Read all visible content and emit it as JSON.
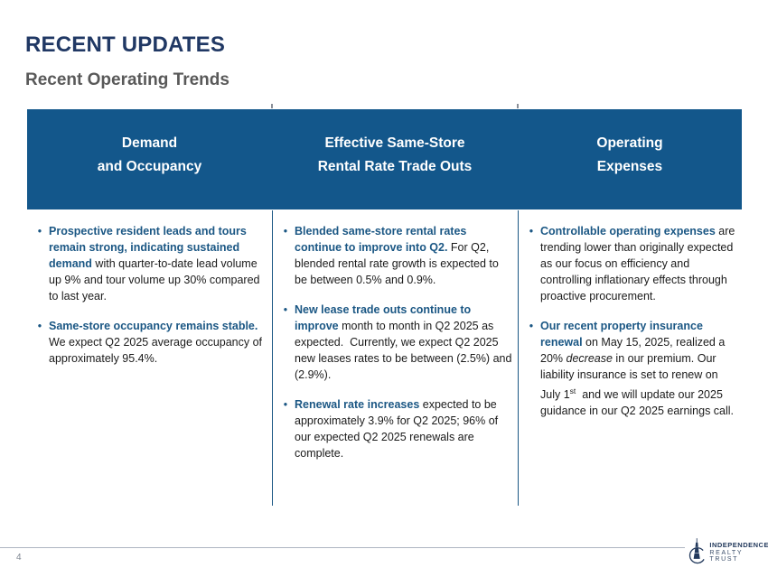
{
  "slide": {
    "title": "RECENT UPDATES",
    "subtitle": "Recent Operating Trends",
    "page_number": "4"
  },
  "colors": {
    "header_bg": "#13578B",
    "accent_blue": "#1B5784",
    "title_navy": "#203864",
    "subtitle_gray": "#595959",
    "body_text": "#1A1A1A",
    "footer_line": "#AEB6C2",
    "logo_navy": "#22395C"
  },
  "table": {
    "bullet_char": "•",
    "columns": [
      {
        "header_line1": "Demand",
        "header_line2": "and Occupancy",
        "bullets": [
          {
            "segments": [
              {
                "style": "bold-blue",
                "text": "Prospective resident leads and tours remain strong, indicating sustained demand"
              },
              {
                "style": "normal",
                "text": " with quarter-to-date lead volume up 9% and tour volume up 30% compared to last year."
              }
            ]
          },
          {
            "segments": [
              {
                "style": "bold-blue",
                "text": "Same-store occupancy remains stable."
              },
              {
                "style": "normal",
                "text": " We expect Q2 2025 average occupancy of approximately 95.4%."
              }
            ]
          }
        ]
      },
      {
        "header_line1": "Effective Same-Store",
        "header_line2": "Rental Rate Trade Outs",
        "bullets": [
          {
            "segments": [
              {
                "style": "bold-blue",
                "text": "Blended same-store rental rates continue to improve into Q2."
              },
              {
                "style": "normal",
                "text": " For Q2, blended rental rate growth is expected to be between 0.5% and 0.9%."
              }
            ]
          },
          {
            "segments": [
              {
                "style": "bold-blue",
                "text": "New lease trade outs continue to improve"
              },
              {
                "style": "normal",
                "text": " month to month in Q2 2025 as expected.  Currently, we expect Q2 2025 new leases rates to be between (2.5%) and (2.9%)."
              }
            ]
          },
          {
            "segments": [
              {
                "style": "bold-blue",
                "text": "Renewal rate increases"
              },
              {
                "style": "normal",
                "text": " expected to be approximately 3.9% for Q2 2025; 96% of our expected Q2 2025 renewals are complete."
              }
            ]
          }
        ]
      },
      {
        "header_line1": "Operating",
        "header_line2": "Expenses",
        "bullets": [
          {
            "segments": [
              {
                "style": "bold-blue",
                "text": "Controllable operating expenses"
              },
              {
                "style": "normal",
                "text": " are trending lower than originally expected as our focus on efficiency and controlling inflationary effects through proactive procurement."
              }
            ]
          },
          {
            "segments": [
              {
                "style": "bold-blue",
                "text": "Our recent property insurance renewal"
              },
              {
                "style": "normal",
                "text": " on May 15, 2025, realized a 20% "
              },
              {
                "style": "italic",
                "text": "decrease"
              },
              {
                "style": "normal",
                "text": " in our premium. Our liability insurance is set to renew on July 1"
              },
              {
                "style": "sup",
                "text": "st"
              },
              {
                "style": "normal",
                "text": "  and we will update our 2025 guidance in our Q2 2025 earnings call."
              }
            ]
          }
        ]
      }
    ]
  },
  "logo": {
    "line1": "INDEPENDENCE",
    "line2": "REALTY TRUST"
  }
}
